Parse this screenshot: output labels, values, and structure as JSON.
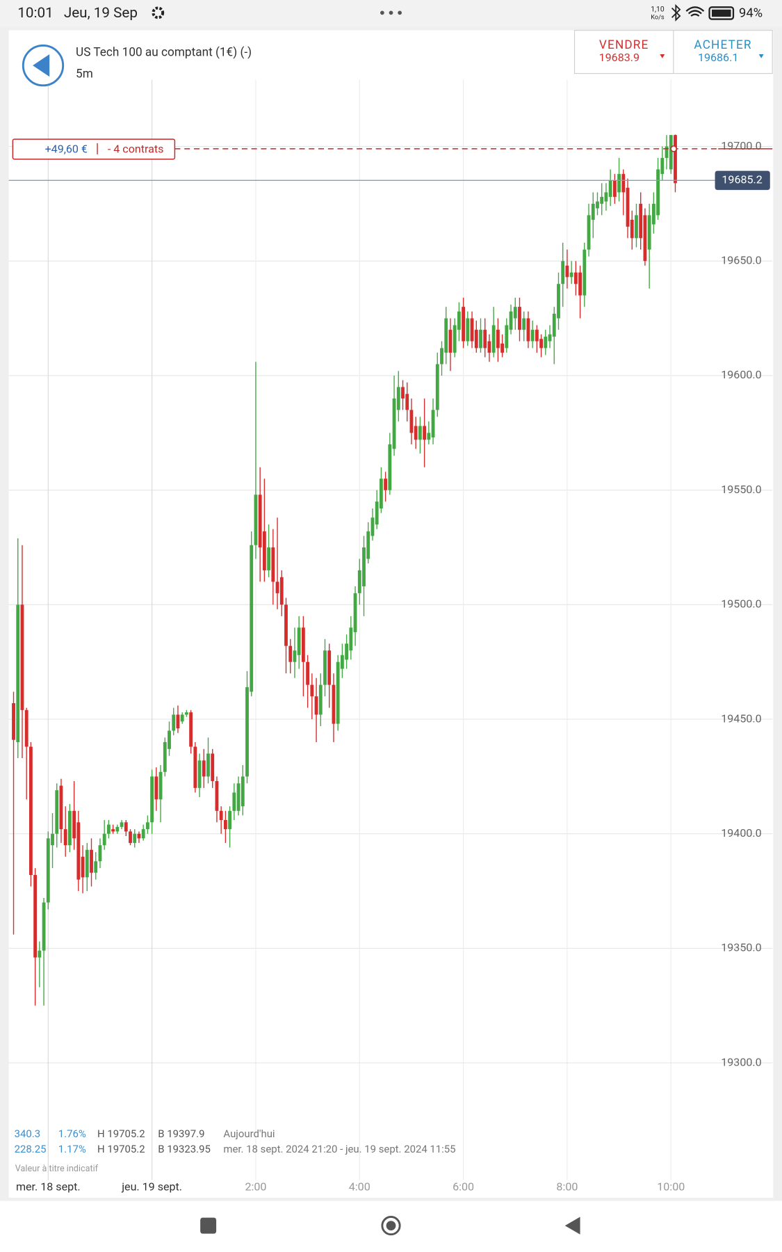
{
  "status_bar": {
    "time": "10:01",
    "date": "Jeu, 19 Sep",
    "speed": "1,10",
    "speed_unit": "Ko/s",
    "battery": "94%"
  },
  "header": {
    "instrument": "US Tech 100 au comptant (1€) (-)",
    "timeframe": "5m",
    "sell_label": "VENDRE",
    "sell_price": "19683.9",
    "buy_label": "ACHETER",
    "buy_price": "19686.1"
  },
  "stats": {
    "rows": [
      [
        "340.3",
        "1.76%",
        "H 19705.2",
        "B 19397.9",
        "Aujourd'hui"
      ],
      [
        "228.25",
        "1.17%",
        "H 19705.2",
        "B 19323.95",
        "mer. 18 sept. 2024 21:20 - jeu. 19 sept. 2024 11:55"
      ]
    ],
    "note": "Valeur à titre indicatif"
  },
  "chart_data": {
    "type": "candlestick",
    "categories": [
      null,
      null,
      null,
      null,
      null,
      null,
      null,
      null,
      "mer. 18 sept.",
      null,
      null,
      null,
      null,
      null,
      null,
      null,
      null,
      null,
      null,
      null,
      null,
      null,
      null,
      null,
      null,
      null,
      null,
      null,
      null,
      null,
      null,
      null,
      "jeu. 19 sept.",
      null,
      null,
      null,
      null,
      null,
      null,
      null,
      null,
      null,
      null,
      null,
      null,
      null,
      null,
      null,
      null,
      null,
      null,
      null,
      null,
      null,
      null,
      null,
      "2:00",
      null,
      null,
      null,
      null,
      null,
      null,
      null,
      null,
      null,
      null,
      null,
      null,
      null,
      null,
      null,
      null,
      null,
      null,
      null,
      null,
      null,
      null,
      null,
      "4:00",
      null,
      null,
      null,
      null,
      null,
      null,
      null,
      null,
      null,
      null,
      null,
      null,
      null,
      null,
      null,
      null,
      null,
      null,
      null,
      null,
      null,
      null,
      null,
      "6:00",
      null,
      null,
      null,
      null,
      null,
      null,
      null,
      null,
      null,
      null,
      null,
      null,
      null,
      null,
      null,
      null,
      null,
      null,
      null,
      null,
      null,
      null,
      null,
      "8:00",
      null,
      null,
      null,
      null,
      null,
      null,
      null,
      null,
      null,
      null,
      null,
      null,
      null,
      null,
      null,
      null,
      null,
      null,
      null,
      null,
      null,
      null,
      null,
      "10:00",
      null
    ],
    "open": [
      19457,
      19440,
      19500,
      19454,
      19438,
      19382,
      19346,
      19349,
      19370,
      19395,
      19400,
      19421,
      19402,
      19395,
      19410,
      19405,
      19390,
      19381,
      19393,
      19383,
      19388,
      19395,
      19400,
      19402,
      19401,
      19403,
      19405,
      19401,
      19396,
      19400,
      19398,
      19402,
      19405,
      19425,
      19415,
      19427,
      19437,
      19445,
      19452,
      19449,
      19452,
      19453,
      19438,
      19420,
      19432,
      19425,
      19435,
      19423,
      19410,
      19406,
      19402,
      19410,
      19410,
      19412,
      19425,
      19462,
      19526,
      19548,
      19532,
      19515,
      19525,
      19510,
      19512,
      19500,
      19482,
      19475,
      19478,
      19490,
      19475,
      19465,
      19460,
      19452,
      19465,
      19480,
      19465,
      19448,
      19472,
      19476,
      19480,
      19488,
      19505,
      19508,
      19520,
      19530,
      19535,
      19542,
      19555,
      19550,
      19568,
      19585,
      19595,
      19592,
      19585,
      19578,
      19572,
      19578,
      19572,
      19573,
      19585,
      19605,
      19610,
      19620,
      19610,
      19620,
      19630,
      19615,
      19625,
      19620,
      19612,
      19620,
      19615,
      19610,
      19620,
      19614,
      19612,
      19620,
      19625,
      19630,
      19620,
      19625,
      19615,
      19620,
      19616,
      19612,
      19615,
      19617,
      19625,
      19640,
      19648,
      19643,
      19645,
      19645,
      19635,
      19655,
      19668,
      19673,
      19675,
      19676,
      19678,
      19685,
      19680,
      19688,
      19682,
      19668,
      19660,
      19675,
      19670,
      19655,
      19666,
      19670,
      19688,
      19695,
      19690,
      19705
    ],
    "high": [
      19462,
      19529,
      19526,
      19455,
      19440,
      19385,
      19353,
      19372,
      19401,
      19409,
      19422,
      19424,
      19412,
      19413,
      19423,
      19410,
      19395,
      19396,
      19398,
      19392,
      19398,
      19406,
      19406,
      19404,
      19404,
      19406,
      19406,
      19402,
      19402,
      19401,
      19404,
      19408,
      19428,
      19429,
      19430,
      19442,
      19449,
      19455,
      19456,
      19453,
      19454,
      19454,
      19440,
      19435,
      19437,
      19442,
      19437,
      19425,
      19412,
      19410,
      19412,
      19422,
      19425,
      19430,
      19471,
      19532,
      19606,
      19560,
      19555,
      19535,
      19533,
      19538,
      19515,
      19503,
      19485,
      19490,
      19495,
      19495,
      19478,
      19470,
      19468,
      19470,
      19485,
      19483,
      19470,
      19478,
      19483,
      19487,
      19495,
      19508,
      19520,
      19530,
      19536,
      19542,
      19550,
      19560,
      19558,
      19575,
      19600,
      19602,
      19598,
      19597,
      19590,
      19582,
      19582,
      19590,
      19580,
      19590,
      19610,
      19615,
      19630,
      19625,
      19625,
      19632,
      19634,
      19628,
      19628,
      19624,
      19625,
      19625,
      19618,
      19630,
      19625,
      19618,
      19625,
      19631,
      19634,
      19634,
      19628,
      19628,
      19624,
      19622,
      19618,
      19620,
      19622,
      19630,
      19645,
      19658,
      19655,
      19650,
      19650,
      19648,
      19658,
      19675,
      19680,
      19680,
      19684,
      19684,
      19690,
      19688,
      19695,
      19690,
      19686,
      19672,
      19675,
      19680,
      19673,
      19675,
      19680,
      19695,
      19700,
      19705,
      19705,
      19705.2
    ],
    "low": [
      19356,
      19433,
      19433,
      19415,
      19377,
      19325,
      19333,
      19325,
      19367,
      19385,
      19394,
      19396,
      19390,
      19392,
      19393,
      19375,
      19374,
      19375,
      19377,
      19380,
      19385,
      19393,
      19398,
      19400,
      19400,
      19402,
      19399,
      19395,
      19394,
      19396,
      19397,
      19400,
      19400,
      19410,
      19405,
      19425,
      19434,
      19443,
      19444,
      19448,
      19451,
      19435,
      19418,
      19416,
      19420,
      19422,
      19420,
      19405,
      19400,
      19396,
      19394,
      19406,
      19408,
      19408,
      19422,
      19460,
      19520,
      19510,
      19510,
      19512,
      19500,
      19498,
      19495,
      19470,
      19470,
      19468,
      19472,
      19460,
      19455,
      19450,
      19440,
      19447,
      19460,
      19455,
      19440,
      19445,
      19468,
      19472,
      19476,
      19482,
      19500,
      19495,
      19518,
      19528,
      19533,
      19540,
      19545,
      19548,
      19565,
      19580,
      19585,
      19580,
      19570,
      19568,
      19566,
      19560,
      19570,
      19570,
      19582,
      19600,
      19605,
      19602,
      19608,
      19615,
      19612,
      19613,
      19612,
      19610,
      19610,
      19608,
      19606,
      19608,
      19606,
      19608,
      19610,
      19618,
      19620,
      19615,
      19615,
      19612,
      19612,
      19610,
      19608,
      19609,
      19612,
      19605,
      19620,
      19630,
      19638,
      19640,
      19635,
      19625,
      19630,
      19652,
      19660,
      19670,
      19670,
      19672,
      19674,
      19675,
      19676,
      19670,
      19660,
      19655,
      19656,
      19655,
      19648,
      19638,
      19662,
      19668,
      19685,
      19690,
      19688,
      19680
    ],
    "close": [
      19441,
      19500,
      19454,
      19438,
      19382,
      19346,
      19349,
      19370,
      19398,
      19400,
      19419,
      19402,
      19395,
      19410,
      19398,
      19380,
      19381,
      19393,
      19383,
      19388,
      19395,
      19400,
      19404,
      19401,
      19403,
      19405,
      19401,
      19396,
      19400,
      19398,
      19402,
      19405,
      19425,
      19415,
      19427,
      19440,
      19445,
      19452,
      19446,
      19452,
      19453,
      19438,
      19420,
      19432,
      19425,
      19435,
      19423,
      19410,
      19406,
      19402,
      19410,
      19418,
      19422,
      19425,
      19464,
      19526,
      19548,
      19525,
      19515,
      19525,
      19510,
      19505,
      19500,
      19482,
      19475,
      19480,
      19490,
      19475,
      19465,
      19460,
      19452,
      19465,
      19480,
      19465,
      19448,
      19475,
      19478,
      19483,
      19490,
      19505,
      19515,
      19525,
      19532,
      19538,
      19545,
      19555,
      19550,
      19570,
      19590,
      19595,
      19590,
      19585,
      19575,
      19572,
      19578,
      19572,
      19575,
      19585,
      19605,
      19612,
      19625,
      19610,
      19622,
      19628,
      19615,
      19625,
      19615,
      19612,
      19620,
      19612,
      19610,
      19622,
      19612,
      19610,
      19622,
      19628,
      19630,
      19620,
      19625,
      19615,
      19620,
      19615,
      19612,
      19617,
      19618,
      19627,
      19640,
      19650,
      19643,
      19645,
      19640,
      19635,
      19655,
      19670,
      19675,
      19676,
      19678,
      19680,
      19685,
      19678,
      19688,
      19680,
      19665,
      19660,
      19670,
      19660,
      19650,
      19670,
      19675,
      19690,
      19695,
      19700,
      19705,
      19684
    ],
    "up_color": "#43a843",
    "down_color": "#d62c2c",
    "ylim": [
      19276,
      19750
    ],
    "yticks": [
      {
        "value": 19300,
        "label": "19300.0"
      },
      {
        "value": 19350,
        "label": "19350.0"
      },
      {
        "value": 19400,
        "label": "19400.0"
      },
      {
        "value": 19450,
        "label": "19450.0"
      },
      {
        "value": 19500,
        "label": "19500.0"
      },
      {
        "value": 19550,
        "label": "19550.0"
      },
      {
        "value": 19600,
        "label": "19600.0"
      },
      {
        "value": 19650,
        "label": "19650.0"
      },
      {
        "value": 19700,
        "label": "19700.0"
      }
    ],
    "grid": true,
    "last_price": 19685.2,
    "position": {
      "level": 19699,
      "pnl": "+49,60 €",
      "contracts": "- 4 contrats"
    }
  }
}
